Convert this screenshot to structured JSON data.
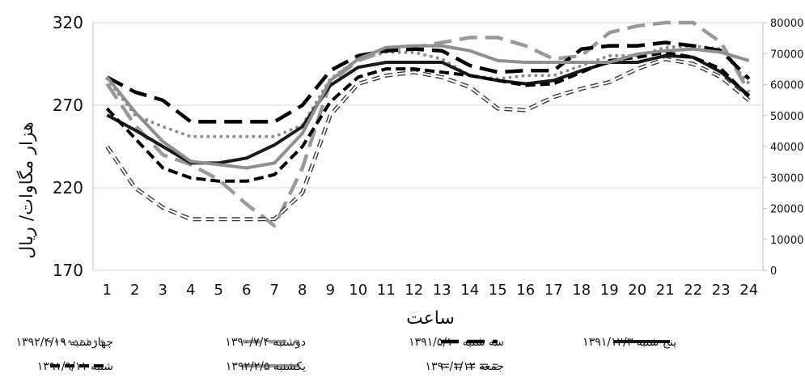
{
  "chart_data": {
    "type": "line",
    "title": "",
    "xlabel": "ساعت",
    "ylabel": "هزار مگاوات/ ریال",
    "categories": [
      "1",
      "2",
      "3",
      "4",
      "5",
      "6",
      "7",
      "8",
      "9",
      "10",
      "11",
      "12",
      "13",
      "14",
      "15",
      "16",
      "17",
      "18",
      "19",
      "20",
      "21",
      "22",
      "23",
      "24"
    ],
    "y_left": {
      "range": [
        170,
        320
      ],
      "ticks": [
        "170",
        "220",
        "270",
        "320"
      ]
    },
    "y_right": {
      "range": [
        0,
        80000
      ],
      "ticks": [
        "0",
        "10000",
        "20000",
        "30000",
        "40000",
        "50000",
        "60000",
        "70000",
        "80000"
      ]
    },
    "grid": "horizontal",
    "legend_position": "bottom",
    "series": [
      {
        "name": "چهارشنبه ۱۳۹۲/۴/۱۹",
        "color": "#8c8c8c",
        "style": "dotted",
        "values": [
          286,
          264,
          257,
          251,
          251,
          251,
          251,
          258,
          286,
          298,
          302,
          302,
          298,
          288,
          286,
          288,
          288,
          294,
          300,
          300,
          305,
          306,
          304,
          283
        ]
      },
      {
        "name": "دوشنبه ۱۳۹۰/۷/۴",
        "color": "#9a9a9a",
        "style": "long-dash",
        "values": [
          283,
          258,
          240,
          234,
          225,
          210,
          197,
          232,
          284,
          297,
          303,
          305,
          308,
          311,
          311,
          306,
          298,
          300,
          314,
          318,
          320,
          320,
          308,
          278
        ]
      },
      {
        "name": "سه شنبه ۱۳۹۱/۵/۱۰",
        "color": "#000000",
        "style": "long-dash",
        "values": [
          287,
          278,
          273,
          260,
          260,
          260,
          260,
          270,
          291,
          300,
          303,
          304,
          303,
          294,
          290,
          291,
          291,
          304,
          306,
          306,
          308,
          306,
          303,
          286
        ]
      },
      {
        "name": "پنج شنبه ۱۳۹۱/۱۲/۳",
        "color": "#1a1a1a",
        "style": "solid",
        "values": [
          264,
          255,
          245,
          235,
          235,
          238,
          246,
          257,
          282,
          293,
          296,
          296,
          296,
          288,
          285,
          283,
          285,
          291,
          296,
          296,
          300,
          299,
          290,
          276
        ]
      },
      {
        "name": "شنبه ۱۳۹۱/۹/۱۱",
        "color": "#000000",
        "style": "dash",
        "values": [
          268,
          250,
          232,
          226,
          224,
          224,
          228,
          245,
          272,
          287,
          292,
          292,
          290,
          288,
          285,
          282,
          283,
          290,
          297,
          299,
          302,
          299,
          292,
          275
        ]
      },
      {
        "name": "یکشنبه ۱۳۹۲/۲/۵",
        "color": "#8f8f8f",
        "style": "solid",
        "values": [
          287,
          266,
          248,
          236,
          234,
          232,
          235,
          253,
          285,
          298,
          305,
          306,
          306,
          303,
          297,
          296,
          296,
          296,
          296,
          301,
          303,
          304,
          302,
          297
        ]
      },
      {
        "name": "جمعه ۱۳۹۰/۱/۱۲",
        "color": "#3a3a3a",
        "style": "hollow-dash",
        "values": [
          245,
          220,
          208,
          201,
          201,
          201,
          201,
          217,
          264,
          283,
          288,
          290,
          287,
          281,
          268,
          267,
          275,
          280,
          284,
          292,
          298,
          295,
          287,
          273
        ]
      }
    ]
  }
}
